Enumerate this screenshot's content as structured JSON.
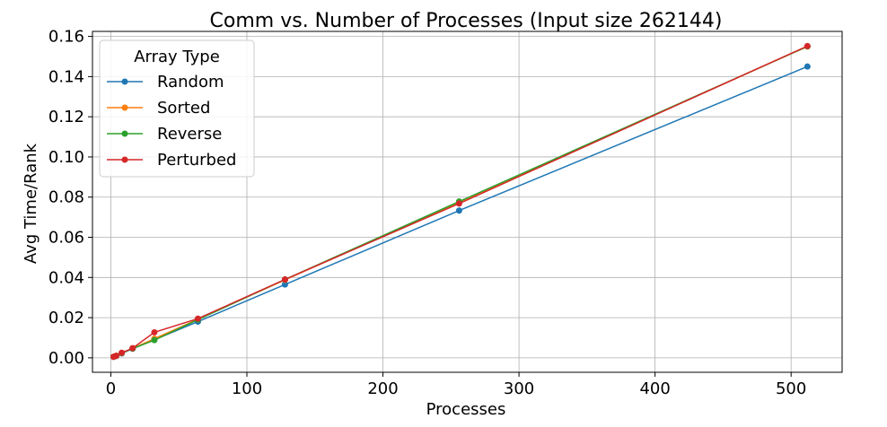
{
  "chart_data": {
    "type": "line",
    "title": "Comm vs. Number of Processes (Input size 262144)",
    "xlabel": "Processes",
    "ylabel": "Avg Time/Rank",
    "xlim": [
      -13.5,
      537.5
    ],
    "ylim": [
      -0.0072,
      0.1625
    ],
    "xticks": [
      0,
      100,
      200,
      300,
      400,
      500
    ],
    "xtick_labels": [
      "0",
      "100",
      "200",
      "300",
      "400",
      "500"
    ],
    "yticks": [
      0.0,
      0.02,
      0.04,
      0.06,
      0.08,
      0.1,
      0.12,
      0.14,
      0.16
    ],
    "ytick_labels": [
      "0.00",
      "0.02",
      "0.04",
      "0.06",
      "0.08",
      "0.10",
      "0.12",
      "0.14",
      "0.16"
    ],
    "grid": true,
    "legend": {
      "title": "Array Type",
      "placement": "top-left"
    },
    "series": [
      {
        "name": "Random",
        "color": "#1f77b4",
        "x": [
          2,
          4,
          8,
          16,
          32,
          64,
          128,
          256,
          512
        ],
        "y": [
          0.0005,
          0.0009,
          0.0022,
          0.0045,
          0.009,
          0.018,
          0.0365,
          0.0733,
          0.145
        ]
      },
      {
        "name": "Sorted",
        "color": "#ff7f0e",
        "x": [
          2,
          4,
          8,
          16,
          32,
          64,
          128,
          256,
          512
        ],
        "y": [
          0.0005,
          0.001,
          0.0024,
          0.0047,
          0.0095,
          0.0192,
          0.0388,
          0.0775,
          0.155
        ]
      },
      {
        "name": "Reverse",
        "color": "#2ca02c",
        "x": [
          2,
          4,
          8,
          16,
          32,
          64,
          128,
          256,
          512
        ],
        "y": [
          0.0005,
          0.001,
          0.0024,
          0.0046,
          0.0088,
          0.019,
          0.039,
          0.0778,
          0.155
        ]
      },
      {
        "name": "Perturbed",
        "color": "#d62728",
        "x": [
          2,
          4,
          8,
          16,
          32,
          64,
          128,
          256,
          512
        ],
        "y": [
          0.0005,
          0.001,
          0.0025,
          0.0048,
          0.0127,
          0.0195,
          0.039,
          0.0768,
          0.1552
        ]
      }
    ]
  }
}
